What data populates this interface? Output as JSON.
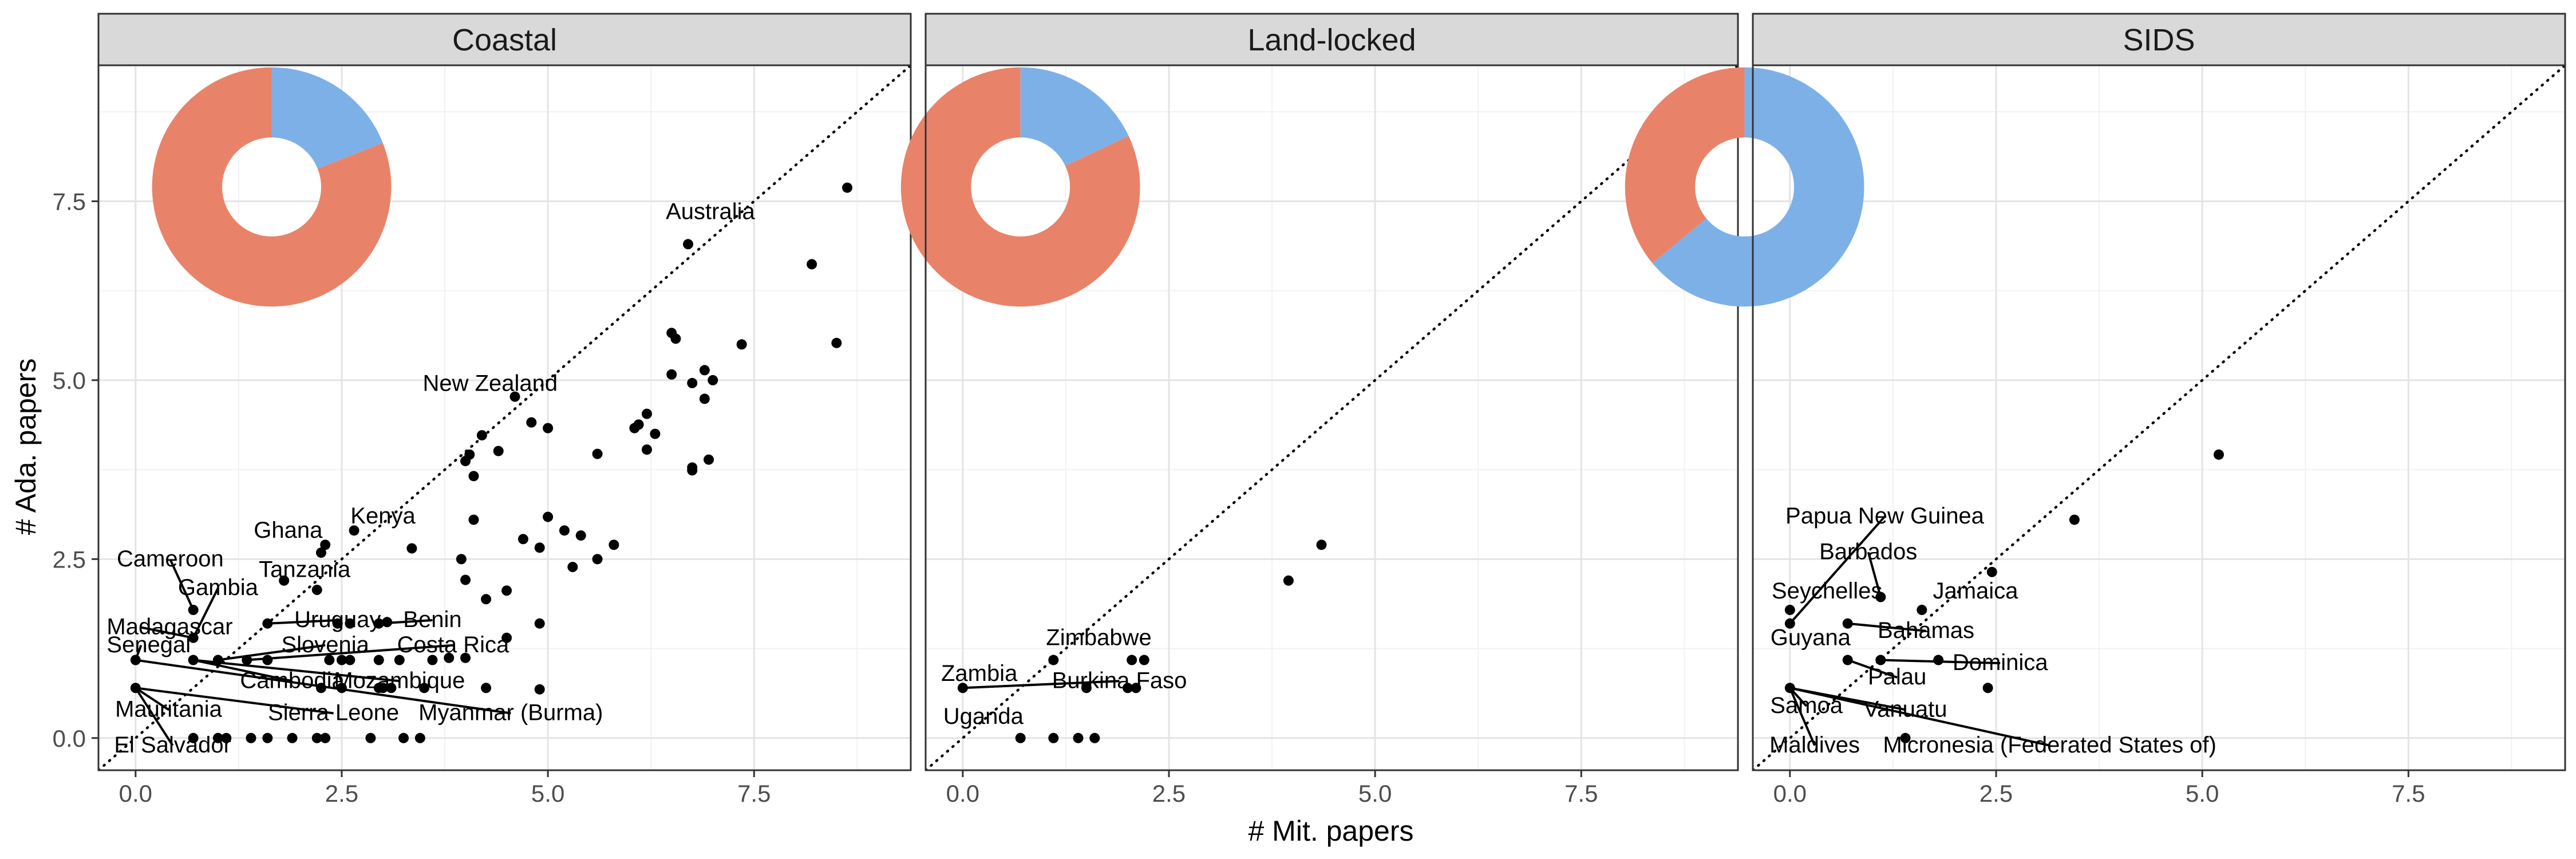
{
  "chart_data": {
    "type": "scatter",
    "xlabel": "# Mit. papers",
    "ylabel": "# Ada. papers",
    "xlim": [
      -0.45,
      9.4
    ],
    "ylim": [
      -0.45,
      9.4
    ],
    "x_ticks": [
      0.0,
      2.5,
      5.0,
      7.5
    ],
    "x_tick_labels": [
      "0.0",
      "2.5",
      "5.0",
      "7.5"
    ],
    "y_ticks": [
      0.0,
      2.5,
      5.0,
      7.5
    ],
    "y_tick_labels": [
      "0.0",
      "2.5",
      "5.0",
      "7.5"
    ],
    "grid": true,
    "reference_line": "y = x (dotted)",
    "colors": {
      "adaptation_slice": "#E8836A",
      "mitigation_slice": "#7EB0E8",
      "point": "#000000",
      "strip_bg": "#D9D9D9"
    },
    "panels": [
      {
        "name": "Coastal",
        "pie": {
          "center": [
            1.65,
            7.7
          ],
          "outer_radius": 1.45,
          "inner_radius": 0.6,
          "mitigation_share": 0.19
        },
        "points": [
          [
            8.63,
            7.69
          ],
          [
            8.2,
            6.62
          ],
          [
            8.5,
            5.52
          ],
          [
            6.7,
            6.9
          ],
          [
            7.35,
            5.5
          ],
          [
            7.0,
            5.0
          ],
          [
            6.9,
            5.14
          ],
          [
            6.9,
            4.74
          ],
          [
            6.75,
            4.96
          ],
          [
            6.5,
            5.66
          ],
          [
            6.55,
            5.58
          ],
          [
            6.5,
            5.08
          ],
          [
            6.2,
            4.53
          ],
          [
            6.1,
            4.38
          ],
          [
            6.3,
            4.25
          ],
          [
            6.05,
            4.33
          ],
          [
            6.2,
            4.03
          ],
          [
            6.75,
            3.78
          ],
          [
            6.75,
            3.74
          ],
          [
            6.95,
            3.89
          ],
          [
            5.8,
            2.7
          ],
          [
            5.6,
            2.5
          ],
          [
            5.6,
            3.97
          ],
          [
            5.4,
            2.83
          ],
          [
            5.0,
            4.33
          ],
          [
            4.8,
            4.41
          ],
          [
            5.0,
            3.09
          ],
          [
            5.2,
            2.9
          ],
          [
            5.3,
            2.39
          ],
          [
            4.7,
            2.78
          ],
          [
            4.9,
            2.66
          ],
          [
            4.9,
            1.6
          ],
          [
            4.6,
            4.77
          ],
          [
            4.4,
            4.01
          ],
          [
            4.0,
            3.87
          ],
          [
            4.05,
            3.96
          ],
          [
            4.2,
            4.23
          ],
          [
            4.1,
            3.66
          ],
          [
            4.1,
            3.05
          ],
          [
            3.95,
            2.5
          ],
          [
            4.0,
            2.21
          ],
          [
            4.25,
            1.94
          ],
          [
            4.0,
            1.12
          ],
          [
            4.5,
            2.06
          ],
          [
            4.5,
            1.4
          ],
          [
            4.25,
            0.7
          ],
          [
            4.9,
            0.68
          ],
          [
            3.35,
            2.65
          ],
          [
            3.8,
            1.12
          ],
          [
            3.05,
            1.62
          ],
          [
            2.95,
            1.6
          ],
          [
            2.65,
            2.9
          ],
          [
            2.3,
            2.7
          ],
          [
            2.25,
            2.59
          ],
          [
            2.2,
            2.07
          ],
          [
            1.8,
            2.2
          ],
          [
            2.45,
            1.6
          ],
          [
            2.6,
            1.6
          ],
          [
            1.6,
            1.6
          ],
          [
            2.5,
            1.09
          ],
          [
            2.6,
            1.09
          ],
          [
            2.95,
            1.09
          ],
          [
            3.2,
            1.09
          ],
          [
            3.6,
            1.09
          ],
          [
            2.35,
            1.09
          ],
          [
            2.25,
            0.7
          ],
          [
            2.95,
            0.7
          ],
          [
            3.1,
            0.7
          ],
          [
            3.0,
            0.7
          ],
          [
            2.5,
            0.7
          ],
          [
            3.5,
            0.7
          ],
          [
            0.7,
            1.79
          ],
          [
            0.7,
            1.4
          ],
          [
            0.7,
            1.09
          ],
          [
            1.35,
            1.09
          ],
          [
            0.0,
            1.09
          ],
          [
            0.0,
            0.7
          ],
          [
            1.0,
            1.09
          ],
          [
            1.6,
            1.09
          ],
          [
            0.7,
            0.0
          ],
          [
            1.0,
            0.0
          ],
          [
            1.1,
            0.0
          ],
          [
            1.4,
            0.0
          ],
          [
            1.6,
            0.0
          ],
          [
            1.9,
            0.0
          ],
          [
            2.2,
            0.0
          ],
          [
            2.3,
            0.0
          ],
          [
            2.85,
            0.0
          ],
          [
            3.25,
            0.0
          ],
          [
            3.45,
            0.0
          ]
        ],
        "labels": [
          {
            "text": "Australia",
            "pt": [
              6.7,
              6.9
            ],
            "lx": 6.97,
            "ly": 7.25,
            "anchor": "middle"
          },
          {
            "text": "New Zealand",
            "pt": [
              4.6,
              4.77
            ],
            "lx": 4.3,
            "ly": 4.85,
            "anchor": "middle"
          },
          {
            "text": "Kenya",
            "pt": [
              2.65,
              2.9
            ],
            "lx": 3.0,
            "ly": 3.0,
            "anchor": "middle"
          },
          {
            "text": "Ghana",
            "pt": [
              2.25,
              2.59
            ],
            "lx": 1.85,
            "ly": 2.8,
            "anchor": "middle"
          },
          {
            "text": "Cameroon",
            "pt": [
              0.7,
              1.79
            ],
            "lx": 0.42,
            "ly": 2.4,
            "anchor": "middle",
            "leader": true
          },
          {
            "text": "Tanzania",
            "pt": [
              2.2,
              2.07
            ],
            "lx": 2.05,
            "ly": 2.25,
            "anchor": "middle"
          },
          {
            "text": "Gambia",
            "pt": [
              0.7,
              1.4
            ],
            "lx": 1.0,
            "ly": 2.0,
            "anchor": "middle",
            "leader": true
          },
          {
            "text": "Uruguay",
            "pt": [
              1.6,
              1.6
            ],
            "lx": 2.45,
            "ly": 1.55,
            "anchor": "middle",
            "leader": true
          },
          {
            "text": "Benin",
            "pt": [
              2.95,
              1.6
            ],
            "lx": 3.6,
            "ly": 1.55,
            "anchor": "middle",
            "leader": true
          },
          {
            "text": "Madagascar",
            "pt": [
              0.7,
              1.4
            ],
            "lx": -0.35,
            "ly": 1.45,
            "anchor": "start",
            "leader": true
          },
          {
            "text": "Senegal",
            "pt": [
              0.0,
              1.09
            ],
            "lx": -0.35,
            "ly": 1.2,
            "anchor": "start",
            "leader": true
          },
          {
            "text": "Slovenia",
            "pt": [
              1.0,
              1.09
            ],
            "lx": 2.3,
            "ly": 1.2,
            "anchor": "middle",
            "leader": true
          },
          {
            "text": "Costa Rica",
            "pt": [
              1.35,
              1.09
            ],
            "lx": 3.85,
            "ly": 1.2,
            "anchor": "middle",
            "leader": true
          },
          {
            "text": "Cambodia",
            "pt": [
              0.7,
              1.09
            ],
            "lx": 1.9,
            "ly": 0.7,
            "anchor": "middle",
            "leader": true
          },
          {
            "text": "Mozambique",
            "pt": [
              0.7,
              1.09
            ],
            "lx": 3.2,
            "ly": 0.7,
            "anchor": "middle",
            "leader": true
          },
          {
            "text": "Mauritania",
            "pt": [
              0.0,
              0.7
            ],
            "lx": 0.4,
            "ly": 0.3,
            "anchor": "middle",
            "leader": true
          },
          {
            "text": "Sierra Leone",
            "pt": [
              0.0,
              0.7
            ],
            "lx": 2.4,
            "ly": 0.25,
            "anchor": "middle",
            "leader": true
          },
          {
            "text": "Myanmar (Burma)",
            "pt": [
              0.0,
              1.09
            ],
            "lx": 4.55,
            "ly": 0.25,
            "anchor": "middle",
            "leader": true
          },
          {
            "text": "El Salvador",
            "pt": [
              0.0,
              0.7
            ],
            "lx": 0.45,
            "ly": -0.2,
            "anchor": "middle",
            "leader": true
          }
        ]
      },
      {
        "name": "Land-locked",
        "pie": {
          "center": [
            0.7,
            7.7
          ],
          "outer_radius": 1.45,
          "inner_radius": 0.6,
          "mitigation_share": 0.18
        },
        "points": [
          [
            4.35,
            2.7
          ],
          [
            3.95,
            2.2
          ],
          [
            1.1,
            1.09
          ],
          [
            2.05,
            1.09
          ],
          [
            2.2,
            1.09
          ],
          [
            2.0,
            0.7
          ],
          [
            2.1,
            0.7
          ],
          [
            1.5,
            0.7
          ],
          [
            0.0,
            0.7
          ],
          [
            0.7,
            0.0
          ],
          [
            1.1,
            0.0
          ],
          [
            1.4,
            0.0
          ],
          [
            1.6,
            0.0
          ]
        ],
        "labels": [
          {
            "text": "Zimbabwe",
            "pt": [
              1.1,
              1.09
            ],
            "lx": 1.65,
            "ly": 1.3,
            "anchor": "middle"
          },
          {
            "text": "Zambia",
            "pt": [
              0.0,
              0.7
            ],
            "lx": 0.2,
            "ly": 0.8,
            "anchor": "middle"
          },
          {
            "text": "Burkina Faso",
            "pt": [
              0.0,
              0.7
            ],
            "lx": 1.9,
            "ly": 0.7,
            "anchor": "middle",
            "leader": true
          },
          {
            "text": "Uganda",
            "pt": [
              0.7,
              0.0
            ],
            "lx": 0.25,
            "ly": 0.2,
            "anchor": "middle"
          }
        ]
      },
      {
        "name": "SIDS",
        "pie": {
          "center": [
            -0.55,
            7.7
          ],
          "outer_radius": 1.45,
          "inner_radius": 0.6,
          "mitigation_share": 0.64
        },
        "points": [
          [
            5.2,
            3.96
          ],
          [
            3.45,
            3.05
          ],
          [
            2.45,
            2.32
          ],
          [
            1.6,
            1.79
          ],
          [
            1.1,
            1.97
          ],
          [
            0.0,
            1.79
          ],
          [
            0.0,
            1.6
          ],
          [
            0.7,
            1.6
          ],
          [
            1.8,
            1.09
          ],
          [
            1.1,
            1.09
          ],
          [
            0.7,
            1.09
          ],
          [
            2.4,
            0.7
          ],
          [
            0.0,
            0.7
          ],
          [
            1.4,
            0.0
          ]
        ],
        "labels": [
          {
            "text": "Papua New Guinea",
            "pt": [
              0.0,
              1.6
            ],
            "lx": 1.15,
            "ly": 3.0,
            "anchor": "middle",
            "leader": true
          },
          {
            "text": "Barbados",
            "pt": [
              1.1,
              1.97
            ],
            "lx": 0.95,
            "ly": 2.5,
            "anchor": "middle",
            "leader": true
          },
          {
            "text": "Jamaica",
            "pt": [
              1.6,
              1.79
            ],
            "lx": 2.25,
            "ly": 1.95,
            "anchor": "middle"
          },
          {
            "text": "Seychelles",
            "pt": [
              0.0,
              1.79
            ],
            "lx": 0.45,
            "ly": 1.95,
            "anchor": "middle"
          },
          {
            "text": "Bahamas",
            "pt": [
              0.7,
              1.6
            ],
            "lx": 1.65,
            "ly": 1.4,
            "anchor": "middle",
            "leader": true
          },
          {
            "text": "Guyana",
            "pt": [
              0.7,
              1.09
            ],
            "lx": 0.25,
            "ly": 1.3,
            "anchor": "middle"
          },
          {
            "text": "Dominica",
            "pt": [
              1.1,
              1.09
            ],
            "lx": 2.55,
            "ly": 0.95,
            "anchor": "middle",
            "leader": true
          },
          {
            "text": "Palau",
            "pt": [
              0.7,
              1.09
            ],
            "lx": 1.3,
            "ly": 0.75,
            "anchor": "middle",
            "leader": true
          },
          {
            "text": "Samoa",
            "pt": [
              0.0,
              0.7
            ],
            "lx": 0.2,
            "ly": 0.35,
            "anchor": "middle",
            "leader": true
          },
          {
            "text": "Vanuatu",
            "pt": [
              0.0,
              0.7
            ],
            "lx": 1.4,
            "ly": 0.3,
            "anchor": "middle",
            "leader": true
          },
          {
            "text": "Maldives",
            "pt": [
              0.0,
              0.7
            ],
            "lx": 0.3,
            "ly": -0.2,
            "anchor": "middle",
            "leader": true
          },
          {
            "text": "Micronesia (Federated States of)",
            "pt": [
              0.0,
              0.7
            ],
            "lx": 3.15,
            "ly": -0.2,
            "anchor": "middle",
            "leader": true
          }
        ]
      }
    ]
  }
}
